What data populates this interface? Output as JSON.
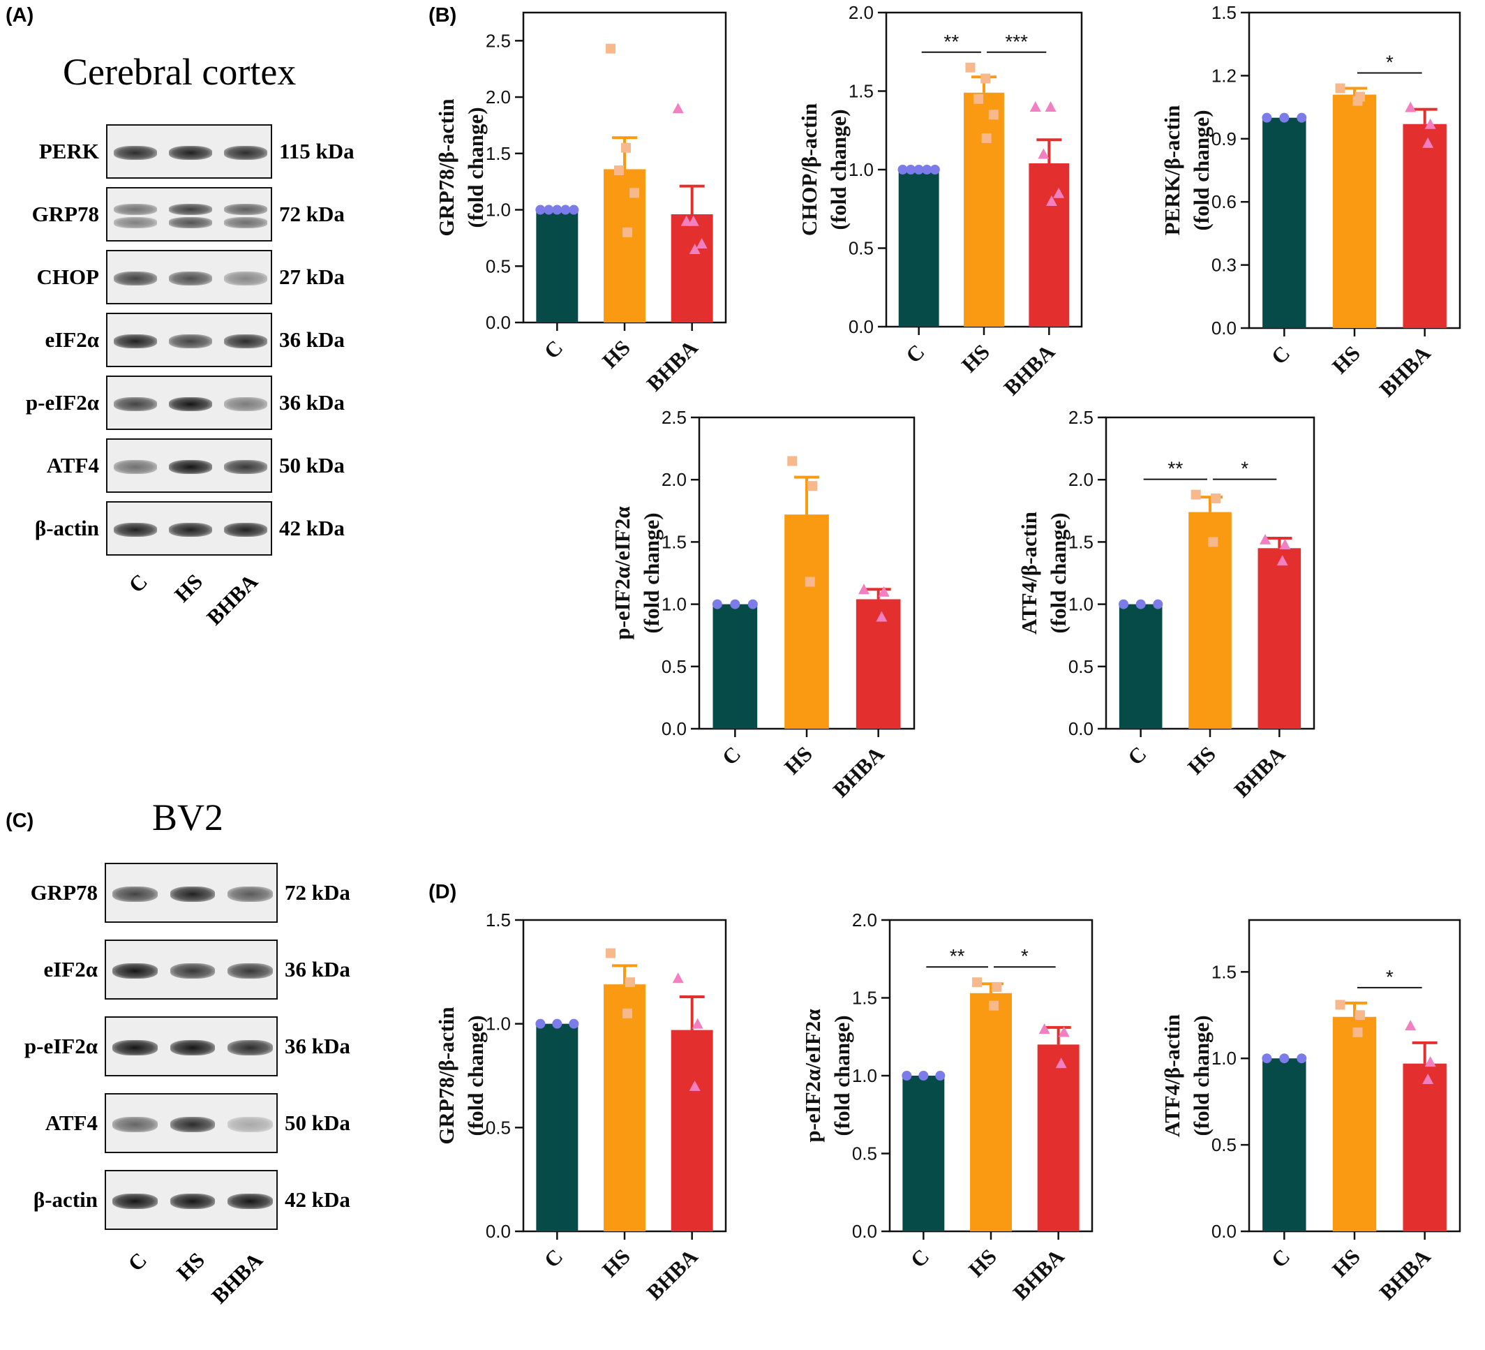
{
  "panels": {
    "A": "(A)",
    "B": "(B)",
    "C": "(C)",
    "D": "(D)"
  },
  "blot_A": {
    "title": "Cerebral cortex",
    "rows": [
      {
        "label": "PERK",
        "kda": "115 kDa",
        "intensity": [
          0.85,
          0.9,
          0.85
        ],
        "double": false
      },
      {
        "label": "GRP78",
        "kda": "72 kDa",
        "intensity": [
          0.6,
          0.85,
          0.7
        ],
        "double": true
      },
      {
        "label": "CHOP",
        "kda": "27 kDa",
        "intensity": [
          0.75,
          0.7,
          0.45
        ],
        "double": false
      },
      {
        "label": "eIF2α",
        "kda": "36 kDa",
        "intensity": [
          0.9,
          0.75,
          0.85
        ],
        "double": false
      },
      {
        "label": "p-eIF2α",
        "kda": "36 kDa",
        "intensity": [
          0.75,
          0.95,
          0.5
        ],
        "double": false
      },
      {
        "label": "ATF4",
        "kda": "50 kDa",
        "intensity": [
          0.55,
          0.95,
          0.8
        ],
        "double": false
      },
      {
        "label": "β-actin",
        "kda": "42 kDa",
        "intensity": [
          0.9,
          0.9,
          0.9
        ],
        "double": false
      }
    ],
    "lanes": [
      "C",
      "HS",
      "BHBA"
    ]
  },
  "blot_C": {
    "title": "BV2",
    "rows": [
      {
        "label": "GRP78",
        "kda": "72 kDa",
        "intensity": [
          0.75,
          0.9,
          0.65
        ],
        "double": false
      },
      {
        "label": "eIF2α",
        "kda": "36 kDa",
        "intensity": [
          0.95,
          0.8,
          0.8
        ],
        "double": false
      },
      {
        "label": "p-eIF2α",
        "kda": "36 kDa",
        "intensity": [
          0.95,
          0.95,
          0.85
        ],
        "double": false
      },
      {
        "label": "ATF4",
        "kda": "50 kDa",
        "intensity": [
          0.6,
          0.85,
          0.3
        ],
        "double": false
      },
      {
        "label": "β-actin",
        "kda": "42 kDa",
        "intensity": [
          0.95,
          0.95,
          0.95
        ],
        "double": false
      }
    ],
    "lanes": [
      "C",
      "HS",
      "BHBA"
    ]
  },
  "colors": {
    "C": "#064b47",
    "HS": "#f99a12",
    "BHBA": "#e3302f",
    "dot_C": "#7b7bea",
    "dot_HS": "#f7b98c",
    "dot_BHBA": "#f27fbf"
  },
  "chart_data": [
    {
      "id": "B1",
      "type": "bar",
      "ylabel": [
        "GRP78/β-actin",
        "(fold change)"
      ],
      "categories": [
        "C",
        "HS",
        "BHBA"
      ],
      "values": [
        1.0,
        1.36,
        0.96
      ],
      "errors": [
        0.0,
        0.28,
        0.25
      ],
      "points": [
        [
          1,
          1,
          1,
          1,
          1
        ],
        [
          2.43,
          1.55,
          1.35,
          1.15,
          0.8
        ],
        [
          1.9,
          0.9,
          0.9,
          0.7,
          0.65
        ]
      ],
      "ylim": [
        0,
        2.75
      ],
      "yticks": [
        "0.0",
        "0.5",
        "1.0",
        "1.5",
        "2.0",
        "2.5"
      ],
      "ytick_values": [
        0,
        0.5,
        1.0,
        1.5,
        2.0,
        2.5
      ],
      "sig": []
    },
    {
      "id": "B2",
      "type": "bar",
      "ylabel": [
        "CHOP/β-actin",
        "(fold change)"
      ],
      "categories": [
        "C",
        "HS",
        "BHBA"
      ],
      "values": [
        1.0,
        1.49,
        1.04
      ],
      "errors": [
        0.0,
        0.1,
        0.15
      ],
      "points": [
        [
          1,
          1,
          1,
          1,
          1
        ],
        [
          1.65,
          1.58,
          1.45,
          1.35,
          1.2
        ],
        [
          1.4,
          1.4,
          1.1,
          0.85,
          0.8
        ]
      ],
      "ylim": [
        0,
        2.0
      ],
      "yticks": [
        "0.0",
        "0.5",
        "1.0",
        "1.5",
        "2.0"
      ],
      "ytick_values": [
        0,
        0.5,
        1.0,
        1.5,
        2.0
      ],
      "sig": [
        {
          "from": 0,
          "to": 1,
          "label": "**"
        },
        {
          "from": 1,
          "to": 2,
          "label": "***"
        }
      ]
    },
    {
      "id": "B3",
      "type": "bar",
      "ylabel": [
        "PERK/β-actin",
        "(fold change)"
      ],
      "categories": [
        "C",
        "HS",
        "BHBA"
      ],
      "values": [
        1.0,
        1.11,
        0.97
      ],
      "errors": [
        0.0,
        0.03,
        0.07
      ],
      "points": [
        [
          1,
          1,
          1
        ],
        [
          1.14,
          1.1,
          1.08
        ],
        [
          1.05,
          0.97,
          0.88
        ]
      ],
      "ylim": [
        0,
        1.5
      ],
      "yticks": [
        "0.0",
        "0.3",
        "0.6",
        "0.9",
        "1.2",
        "1.5"
      ],
      "ytick_values": [
        0,
        0.3,
        0.6,
        0.9,
        1.2,
        1.5
      ],
      "sig": [
        {
          "from": 1,
          "to": 2,
          "label": "*"
        }
      ]
    },
    {
      "id": "B4",
      "type": "bar",
      "ylabel": [
        "p-eIF2α/eIF2α",
        "(fold change)"
      ],
      "categories": [
        "C",
        "HS",
        "BHBA"
      ],
      "values": [
        1.0,
        1.72,
        1.04
      ],
      "errors": [
        0.0,
        0.3,
        0.08
      ],
      "points": [
        [
          1,
          1,
          1
        ],
        [
          2.15,
          1.95,
          1.18
        ],
        [
          1.12,
          1.1,
          0.9
        ]
      ],
      "ylim": [
        0,
        2.5
      ],
      "yticks": [
        "0.0",
        "0.5",
        "1.0",
        "1.5",
        "2.0",
        "2.5"
      ],
      "ytick_values": [
        0,
        0.5,
        1.0,
        1.5,
        2.0,
        2.5
      ],
      "sig": []
    },
    {
      "id": "B5",
      "type": "bar",
      "ylabel": [
        "ATF4/β-actin",
        "(fold change)"
      ],
      "categories": [
        "C",
        "HS",
        "BHBA"
      ],
      "values": [
        1.0,
        1.74,
        1.45
      ],
      "errors": [
        0.0,
        0.12,
        0.08
      ],
      "points": [
        [
          1,
          1,
          1
        ],
        [
          1.88,
          1.85,
          1.5
        ],
        [
          1.52,
          1.48,
          1.35
        ]
      ],
      "ylim": [
        0,
        2.5
      ],
      "yticks": [
        "0.0",
        "0.5",
        "1.0",
        "1.5",
        "2.0",
        "2.5"
      ],
      "ytick_values": [
        0,
        0.5,
        1.0,
        1.5,
        2.0,
        2.5
      ],
      "sig": [
        {
          "from": 0,
          "to": 1,
          "label": "**"
        },
        {
          "from": 1,
          "to": 2,
          "label": "*"
        }
      ]
    },
    {
      "id": "D1",
      "type": "bar",
      "ylabel": [
        "GRP78/β-actin",
        "(fold change)"
      ],
      "categories": [
        "C",
        "HS",
        "BHBA"
      ],
      "values": [
        1.0,
        1.19,
        0.97
      ],
      "errors": [
        0.0,
        0.09,
        0.16
      ],
      "points": [
        [
          1,
          1,
          1
        ],
        [
          1.34,
          1.2,
          1.05
        ],
        [
          1.22,
          1.0,
          0.7
        ]
      ],
      "ylim": [
        0,
        1.5
      ],
      "yticks": [
        "0.0",
        "0.5",
        "1.0",
        "1.5"
      ],
      "ytick_values": [
        0,
        0.5,
        1.0,
        1.5
      ],
      "sig": []
    },
    {
      "id": "D2",
      "type": "bar",
      "ylabel": [
        "p-eIF2α/eIF2α",
        "(fold change)"
      ],
      "categories": [
        "C",
        "HS",
        "BHBA"
      ],
      "values": [
        1.0,
        1.53,
        1.2
      ],
      "errors": [
        0.0,
        0.06,
        0.11
      ],
      "points": [
        [
          1,
          1,
          1
        ],
        [
          1.6,
          1.57,
          1.45
        ],
        [
          1.3,
          1.28,
          1.08
        ]
      ],
      "ylim": [
        0,
        2.0
      ],
      "yticks": [
        "0.0",
        "0.5",
        "1.0",
        "1.5",
        "2.0"
      ],
      "ytick_values": [
        0,
        0.5,
        1.0,
        1.5,
        2.0
      ],
      "sig": [
        {
          "from": 0,
          "to": 1,
          "label": "**"
        },
        {
          "from": 1,
          "to": 2,
          "label": "*"
        }
      ]
    },
    {
      "id": "D3",
      "type": "bar",
      "ylabel": [
        "ATF4/β-actin",
        "(fold change)"
      ],
      "categories": [
        "C",
        "HS",
        "BHBA"
      ],
      "values": [
        1.0,
        1.24,
        0.97
      ],
      "errors": [
        0.0,
        0.08,
        0.12
      ],
      "points": [
        [
          1,
          1,
          1
        ],
        [
          1.31,
          1.25,
          1.15
        ],
        [
          1.19,
          0.98,
          0.88
        ]
      ],
      "ylim": [
        0,
        1.8
      ],
      "yticks": [
        "0.0",
        "0.5",
        "1.0",
        "1.5"
      ],
      "ytick_values": [
        0,
        0.5,
        1.0,
        1.5
      ],
      "sig": [
        {
          "from": 1,
          "to": 2,
          "label": "*"
        }
      ]
    }
  ]
}
